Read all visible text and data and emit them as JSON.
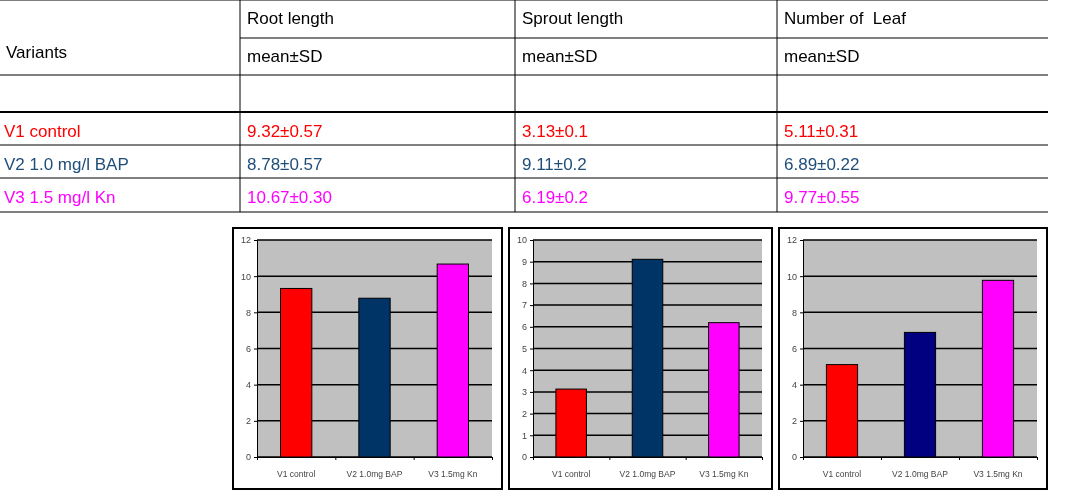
{
  "chart_data": [
    {
      "type": "other",
      "title": "Variants",
      "categories": [
        "V1 control",
        "V2 1.0 mg/l BAP",
        "V3 1.5 mg/l Kn"
      ],
      "colors": [
        "#ff0000",
        "#1f4e79",
        "#ff00ff"
      ],
      "annotations": [
        "9.32±0.57",
        "3.13±0.1",
        "5.11±0.31",
        "8.78±0.57",
        "9.11±0.2",
        "6.89±0.22",
        "10.67±0.30",
        "6.19±0.2",
        "9.77±0.55"
      ]
    },
    {
      "type": "bar",
      "title": "Root length",
      "subtitle": "mean±SD",
      "categories": [
        "V1 control",
        "V2 1.0mg BAP",
        "V3 1.5mg Kn"
      ],
      "values": [
        9.32,
        8.78,
        10.67
      ],
      "colors": [
        "#ff0000",
        "#003366",
        "#ff00ff"
      ],
      "ylim": [
        0,
        12
      ],
      "yticks": [
        0,
        2,
        4,
        6,
        8,
        10,
        12
      ],
      "grid": "y"
    },
    {
      "type": "bar",
      "title": "Sprout length",
      "subtitle": "mean±SD",
      "categories": [
        "V1 control",
        "V2 1.0mg BAP",
        "V3 1.5mg Kn"
      ],
      "values": [
        3.13,
        9.11,
        6.19
      ],
      "colors": [
        "#ff0000",
        "#003366",
        "#ff00ff"
      ],
      "ylim": [
        0,
        10
      ],
      "yticks": [
        0,
        1,
        2,
        3,
        4,
        5,
        6,
        7,
        8,
        9,
        10
      ],
      "grid": "y"
    },
    {
      "type": "bar",
      "title": "Number of  Leaf",
      "subtitle": "mean±SD",
      "categories": [
        "V1 control",
        "V2 1.0mg BAP",
        "V3 1.5mg Kn"
      ],
      "values": [
        5.11,
        6.89,
        9.77
      ],
      "colors": [
        "#ff0000",
        "#000080",
        "#ff00ff"
      ],
      "ylim": [
        0,
        12
      ],
      "yticks": [
        0,
        2,
        4,
        6,
        8,
        10,
        12
      ],
      "grid": "y"
    }
  ]
}
